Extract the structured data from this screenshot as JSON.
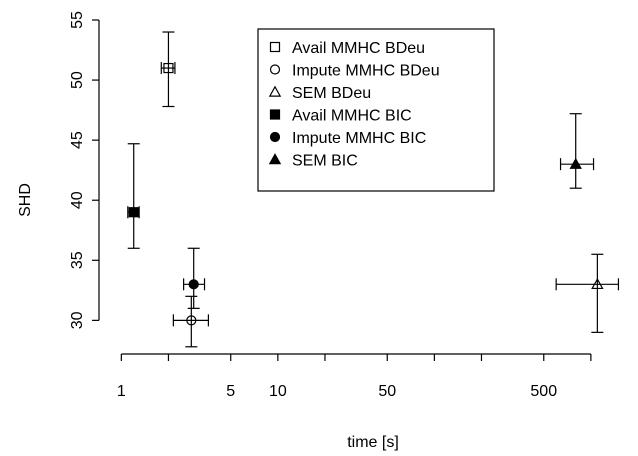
{
  "chart_data": {
    "type": "scatter",
    "title": "",
    "xlabel": "time [s]",
    "ylabel": "SHD",
    "x_scale": "log",
    "xlim": [
      0.72,
      2000
    ],
    "ylim": [
      27.2,
      55
    ],
    "x_ticks": [
      1,
      2,
      5,
      10,
      20,
      50,
      100,
      200,
      500,
      1000
    ],
    "x_tick_labels": [
      "1",
      "",
      "5",
      "10",
      "",
      "50",
      "",
      "",
      "500",
      ""
    ],
    "y_ticks": [
      30,
      35,
      40,
      45,
      50,
      55
    ],
    "y_tick_labels": [
      "30",
      "35",
      "40",
      "45",
      "50",
      "55"
    ],
    "grid": false,
    "legend_position": "top-center",
    "series": [
      {
        "name": "Avail MMHC BDeu",
        "marker": "open-square",
        "x": 2.0,
        "y": 51.0,
        "x_err": [
          1.8,
          2.2
        ],
        "y_err": [
          47.8,
          54.0
        ]
      },
      {
        "name": "Impute MMHC BDeu",
        "marker": "open-circle",
        "x": 2.8,
        "y": 30.0,
        "x_err": [
          2.15,
          3.6
        ],
        "y_err": [
          27.8,
          32.0
        ]
      },
      {
        "name": "SEM BDeu",
        "marker": "open-triangle",
        "x": 1100,
        "y": 33.0,
        "x_err": [
          600,
          1500
        ],
        "y_err": [
          29.0,
          35.5
        ]
      },
      {
        "name": "Avail MMHC BIC",
        "marker": "filled-square",
        "x": 1.2,
        "y": 39.0,
        "x_err": [
          1.1,
          1.3
        ],
        "y_err": [
          36.0,
          44.7
        ]
      },
      {
        "name": "Impute MMHC BIC",
        "marker": "filled-circle",
        "x": 2.9,
        "y": 33.0,
        "x_err": [
          2.5,
          3.4
        ],
        "y_err": [
          31.0,
          36.0
        ]
      },
      {
        "name": "SEM BIC",
        "marker": "filled-triangle",
        "x": 800,
        "y": 43.0,
        "x_err": [
          640,
          1040
        ],
        "y_err": [
          41.0,
          47.2
        ]
      }
    ]
  }
}
